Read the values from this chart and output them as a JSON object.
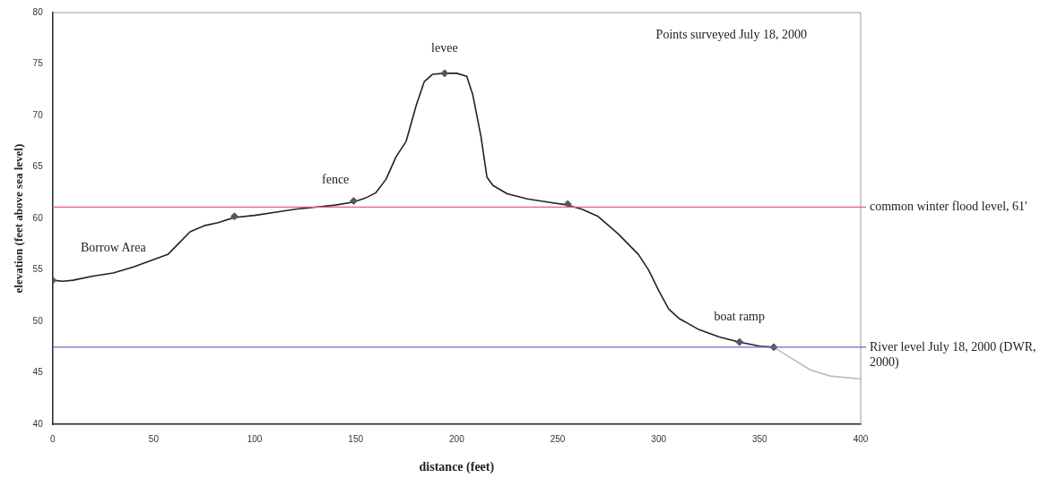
{
  "chart_data": {
    "type": "line",
    "xlabel": "distance (feet)",
    "ylabel": "elevation (feet above sea level)",
    "xlim": [
      0,
      400
    ],
    "xticks": [
      0,
      50,
      100,
      150,
      200,
      250,
      300,
      350,
      400
    ],
    "ylim": [
      40,
      80
    ],
    "yticks": [
      40,
      45,
      50,
      55,
      60,
      65,
      70,
      75,
      80
    ],
    "grid": false,
    "legend": false,
    "series": [
      {
        "type": "line",
        "color": "#222222",
        "marker": "none",
        "x": [
          0,
          5,
          10,
          20,
          30,
          40,
          50,
          57,
          62,
          68,
          75,
          82,
          90,
          100,
          110,
          120,
          130,
          140,
          149,
          155,
          160,
          165,
          170,
          175,
          180,
          184,
          188,
          194,
          200,
          205,
          208,
          212,
          215,
          218,
          225,
          235,
          245,
          255,
          262,
          270,
          280,
          290,
          295,
          300,
          305,
          310,
          320,
          330,
          340,
          350,
          357
        ],
        "values": [
          54.0,
          53.9,
          54.0,
          54.4,
          54.7,
          55.3,
          56.0,
          56.5,
          57.5,
          58.7,
          59.3,
          59.6,
          60.1,
          60.3,
          60.6,
          60.9,
          61.1,
          61.3,
          61.6,
          62.0,
          62.5,
          63.8,
          66.0,
          67.5,
          71.0,
          73.3,
          74.0,
          74.1,
          74.1,
          73.8,
          72.0,
          68.0,
          64.0,
          63.2,
          62.4,
          61.9,
          61.6,
          61.3,
          60.9,
          60.2,
          58.5,
          56.5,
          55.0,
          53.0,
          51.2,
          50.3,
          49.2,
          48.5,
          48.0,
          47.6,
          47.5
        ]
      },
      {
        "type": "line",
        "color": "#bbbbbb",
        "marker": "none",
        "x": [
          357,
          365,
          375,
          385,
          400
        ],
        "values": [
          47.5,
          46.5,
          45.3,
          44.7,
          44.4
        ]
      },
      {
        "type": "scatter",
        "color": "#555566",
        "marker": "diamond",
        "x": [
          0,
          90,
          149,
          194,
          255,
          340,
          357
        ],
        "values": [
          54.0,
          60.2,
          61.7,
          74.1,
          61.4,
          48.0,
          47.5
        ]
      }
    ],
    "ref_lines": [
      {
        "axis": "y",
        "value": 61.1,
        "label": "common winter flood level, 61'",
        "color": "#e0607a"
      },
      {
        "axis": "y",
        "value": 47.5,
        "label": "River level July 18, 2000 (DWR, 2000)",
        "color": "#6b6bc0"
      }
    ],
    "annotations": [
      "Points surveyed July 18, 2000",
      {
        "text": "Borrow Area",
        "x": 30,
        "y": 54.7
      },
      {
        "text": "fence",
        "x": 140,
        "y": 61.3
      },
      {
        "text": "levee",
        "x": 194,
        "y": 74.1
      },
      {
        "text": "boat ramp",
        "x": 340,
        "y": 48.0
      }
    ]
  }
}
